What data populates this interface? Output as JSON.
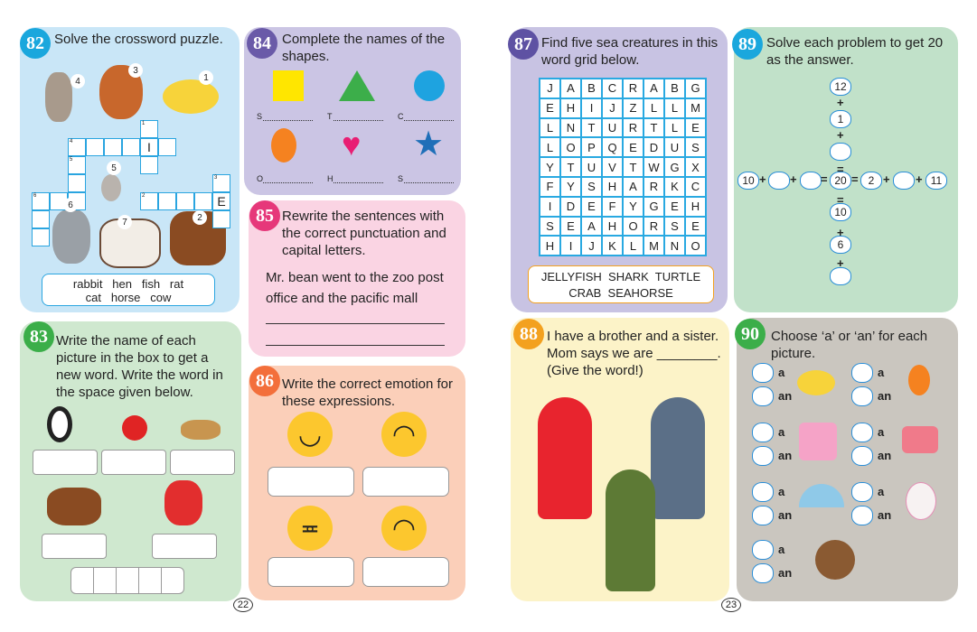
{
  "activities": {
    "a82": {
      "number": "82",
      "title": "Solve the crossword puzzle.",
      "clue_numbers": [
        "1",
        "2",
        "3",
        "4",
        "5",
        "6",
        "7"
      ],
      "filled_letters": {
        "I": "I",
        "E": "E"
      },
      "words": [
        "rabbit",
        "hen",
        "fish",
        "rat",
        "cat",
        "horse",
        "cow"
      ],
      "color": "#c9e6f7",
      "badge": "#1aa7dd"
    },
    "a83": {
      "number": "83",
      "title": "Write the name of each picture in the box to get a new word. Write the word in the space given below.",
      "color": "#cfe8cf",
      "badge": "#3bae49"
    },
    "a84": {
      "number": "84",
      "title": "Complete the names of the shapes.",
      "labels": [
        "S",
        "T",
        "C",
        "O",
        "H",
        "S"
      ],
      "color": "#cbc5e4",
      "badge": "#6a5aa8"
    },
    "a85": {
      "number": "85",
      "title": "Rewrite the sentences with the correct punctuation and capital letters.",
      "sentence": "Mr. bean went to the zoo post office and the pacific mall",
      "color": "#fad4e3",
      "badge": "#e6387a"
    },
    "a86": {
      "number": "86",
      "title": "Write the correct emotion for these expressions.",
      "color": "#fbcfb9",
      "badge": "#f36f3b"
    },
    "a87": {
      "number": "87",
      "title": "Find five sea creatures in this word grid below.",
      "grid": [
        "JABCRABG",
        "EHIJZLLM",
        "LNTURTLE",
        "LOPQEDUS",
        "YTUVTWGX",
        "FYSHARKC",
        "IDEFYGEH",
        "SEAHORSE",
        "HIJKLMNO"
      ],
      "words_line1": "JELLYFISH  SHARK  TURTLE",
      "words_line2": "CRAB  SEAHORSE",
      "color": "#c8c3e3",
      "badge": "#5e52a3"
    },
    "a88": {
      "number": "88",
      "title": "I have a brother and a sister. Mom says we are ________. (Give the word!)",
      "color": "#fcf3c8",
      "badge": "#f3a11f"
    },
    "a89": {
      "number": "89",
      "title": "Solve each problem to get 20 as the answer.",
      "vertical": [
        "12",
        "1",
        "",
        "20",
        "10",
        "6",
        ""
      ],
      "horizontal": [
        "10",
        "",
        "",
        "20",
        "2",
        "",
        "11"
      ],
      "color": "#c1e1c9",
      "badge": "#1aa7dd"
    },
    "a90": {
      "number": "90",
      "title": "Choose ‘a’ or ‘an’ for each picture.",
      "option_a": "a",
      "option_an": "an",
      "color": "#cac6bf",
      "badge": "#3bae49"
    }
  },
  "pages": {
    "left": "22",
    "right": "23"
  }
}
